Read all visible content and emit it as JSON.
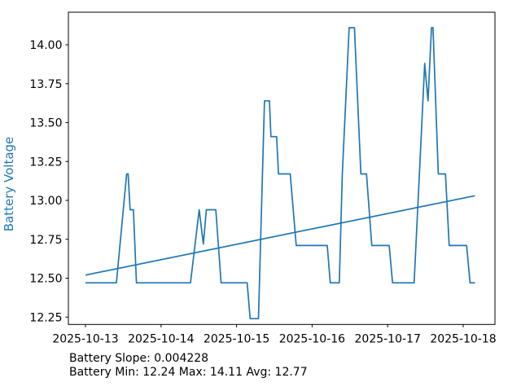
{
  "figure": {
    "background": "#ffffff"
  },
  "chart_data": {
    "type": "line",
    "title": "",
    "xlabel": "",
    "ylabel": "Battery Voltage",
    "ylabel_color": "#1f77b4",
    "line_color": "#1f77b4",
    "axis_color": "#000000",
    "tick_text_color": "#000000",
    "grid": false,
    "legend": "none",
    "ylim": [
      12.2,
      14.21
    ],
    "xlim_days": [
      -0.226,
      5.424
    ],
    "x_axis": {
      "tick_labels": [
        "2025-10-13",
        "2025-10-14",
        "2025-10-15",
        "2025-10-16",
        "2025-10-17",
        "2025-10-18"
      ],
      "tick_day_offsets": [
        0,
        1,
        2,
        3,
        4,
        5
      ]
    },
    "y_axis": {
      "tick_values": [
        14.0,
        13.75,
        13.5,
        13.25,
        13.0,
        12.75,
        12.5,
        12.25
      ],
      "tick_labels": [
        "14.00",
        "13.75",
        "13.50",
        "13.25",
        "13.00",
        "12.75",
        "12.50",
        "12.25"
      ]
    },
    "series": [
      {
        "name": "Battery Voltage",
        "color": "#1f77b4",
        "points_day_voltage": [
          [
            0.0,
            12.47
          ],
          [
            0.41,
            12.47
          ],
          [
            0.545,
            13.17
          ],
          [
            0.565,
            13.17
          ],
          [
            0.59,
            12.94
          ],
          [
            0.635,
            12.94
          ],
          [
            0.675,
            12.47
          ],
          [
            1.39,
            12.47
          ],
          [
            1.505,
            12.94
          ],
          [
            1.56,
            12.72
          ],
          [
            1.6,
            12.94
          ],
          [
            1.725,
            12.94
          ],
          [
            1.795,
            12.47
          ],
          [
            2.14,
            12.47
          ],
          [
            2.18,
            12.24
          ],
          [
            2.29,
            12.24
          ],
          [
            2.37,
            13.64
          ],
          [
            2.435,
            13.64
          ],
          [
            2.455,
            13.41
          ],
          [
            2.53,
            13.41
          ],
          [
            2.555,
            13.17
          ],
          [
            2.71,
            13.17
          ],
          [
            2.79,
            12.71
          ],
          [
            3.2,
            12.71
          ],
          [
            3.24,
            12.47
          ],
          [
            3.36,
            12.47
          ],
          [
            3.4,
            13.17
          ],
          [
            3.49,
            14.11
          ],
          [
            3.56,
            14.11
          ],
          [
            3.645,
            13.17
          ],
          [
            3.72,
            13.17
          ],
          [
            3.79,
            12.71
          ],
          [
            4.02,
            12.71
          ],
          [
            4.065,
            12.47
          ],
          [
            4.35,
            12.47
          ],
          [
            4.42,
            13.17
          ],
          [
            4.49,
            13.88
          ],
          [
            4.535,
            13.64
          ],
          [
            4.58,
            14.11
          ],
          [
            4.6,
            14.11
          ],
          [
            4.67,
            13.17
          ],
          [
            4.765,
            13.17
          ],
          [
            4.815,
            12.71
          ],
          [
            5.045,
            12.71
          ],
          [
            5.09,
            12.47
          ],
          [
            5.155,
            12.47
          ]
        ]
      }
    ],
    "trend_line": {
      "name": "trend",
      "color": "#1f77b4",
      "points_day_voltage": [
        [
          0.0,
          12.52
        ],
        [
          5.155,
          13.03
        ]
      ]
    },
    "footer_lines": [
      "Battery Slope: 0.004228",
      "Battery Min: 12.24 Max: 14.11 Avg: 12.77"
    ],
    "stats": {
      "slope": "0.004228",
      "min": "12.24",
      "max": "14.11",
      "avg": "12.77"
    }
  }
}
